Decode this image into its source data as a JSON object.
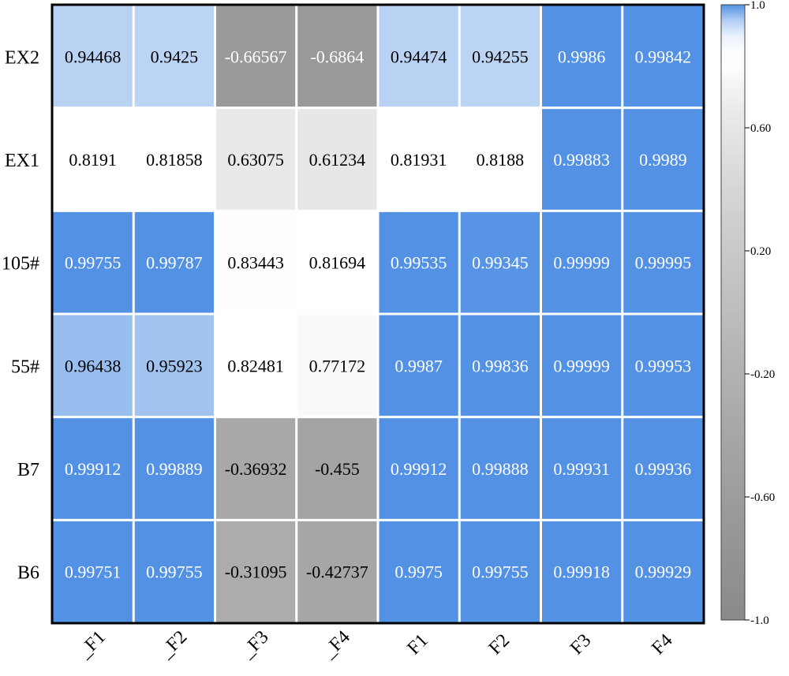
{
  "chart_data": {
    "type": "heatmap",
    "title": "",
    "xlabel": "",
    "ylabel": "",
    "x_labels": [
      "_F1",
      "_F2",
      "_F3",
      "_F4",
      "F1",
      "F2",
      "F3",
      "F4"
    ],
    "y_labels": [
      "EX2",
      "EX1",
      "105#",
      "55#",
      "B7",
      "B6"
    ],
    "values": [
      [
        0.94468,
        0.9425,
        -0.66567,
        -0.6864,
        0.94474,
        0.94255,
        0.9986,
        0.99842
      ],
      [
        0.8191,
        0.81858,
        0.63075,
        0.61234,
        0.81931,
        0.8188,
        0.99883,
        0.9989
      ],
      [
        0.99755,
        0.99787,
        0.83443,
        0.81694,
        0.99535,
        0.99345,
        0.99999,
        0.99995
      ],
      [
        0.96438,
        0.95923,
        0.82481,
        0.77172,
        0.9987,
        0.99836,
        0.99999,
        0.99953
      ],
      [
        0.99912,
        0.99889,
        -0.36932,
        -0.455,
        0.99912,
        0.99888,
        0.99931,
        0.99936
      ],
      [
        0.99751,
        0.99755,
        -0.31095,
        -0.42737,
        0.9975,
        0.99755,
        0.99918,
        0.99929
      ]
    ],
    "cell_labels": [
      [
        "0.94468",
        "0.9425",
        "-0.66567",
        "-0.6864",
        "0.94474",
        "0.94255",
        "0.9986",
        "0.99842"
      ],
      [
        "0.8191",
        "0.81858",
        "0.63075",
        "0.61234",
        "0.81931",
        "0.8188",
        "0.99883",
        "0.9989"
      ],
      [
        "0.99755",
        "0.99787",
        "0.83443",
        "0.81694",
        "0.99535",
        "0.99345",
        "0.99999",
        "0.99995"
      ],
      [
        "0.96438",
        "0.95923",
        "0.82481",
        "0.77172",
        "0.9987",
        "0.99836",
        "0.99999",
        "0.99953"
      ],
      [
        "0.99912",
        "0.99889",
        "-0.36932",
        "-0.455",
        "0.99912",
        "0.99888",
        "0.99931",
        "0.99936"
      ],
      [
        "0.99751",
        "0.99755",
        "-0.31095",
        "-0.42737",
        "0.9975",
        "0.99755",
        "0.99918",
        "0.99929"
      ]
    ],
    "colorbar": {
      "range": [
        -1.0,
        1.0
      ],
      "tick_values": [
        1.0,
        0.6,
        0.2,
        -0.2,
        -0.6,
        -1.0
      ],
      "tick_labels": [
        "1.0",
        "0.60",
        "0.20",
        "-0.20",
        "-0.60",
        "-1.0"
      ],
      "placement": "right"
    },
    "colors": {
      "high": "#5391e4",
      "mid": "#ffffff",
      "low": "#8a8a8a",
      "text_dark": "#000000",
      "text_light": "#ffffff",
      "grid_line": "#ffffff",
      "frame": "#000000"
    },
    "grid": true
  }
}
